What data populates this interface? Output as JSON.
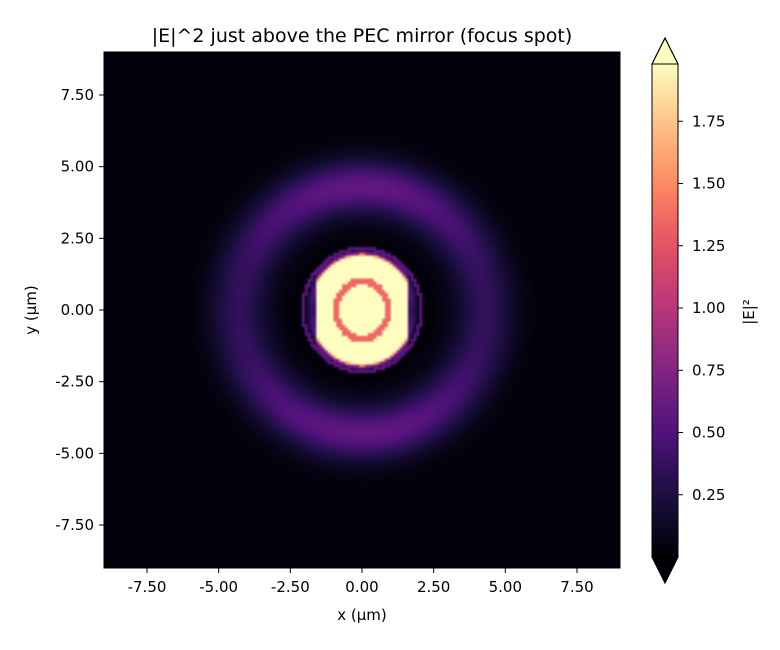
{
  "chart_data": {
    "type": "heatmap",
    "title": "|E|^2 just above the PEC mirror (focus spot)",
    "xlabel": "x (µm)",
    "ylabel": "y (µm)",
    "xlim": [
      -9.0,
      9.0
    ],
    "ylim": [
      -9.0,
      9.0
    ],
    "xticks": [
      -7.5,
      -5.0,
      -2.5,
      0.0,
      2.5,
      5.0,
      7.5
    ],
    "yticks": [
      -7.5,
      -5.0,
      -2.5,
      0.0,
      2.5,
      5.0,
      7.5
    ],
    "xtick_labels": [
      "-7.50",
      "-5.00",
      "-2.50",
      "0.00",
      "2.50",
      "5.00",
      "7.50"
    ],
    "ytick_labels": [
      "-7.50",
      "-5.00",
      "-2.50",
      "0.00",
      "2.50",
      "5.00",
      "7.50"
    ],
    "colormap": "magma",
    "colorbar": {
      "label": "|E|²",
      "vmin": 0.0,
      "vmax": 1.98,
      "ticks": [
        0.25,
        0.5,
        0.75,
        1.0,
        1.25,
        1.5,
        1.75
      ],
      "tick_labels": [
        "0.25",
        "0.50",
        "0.75",
        "1.00",
        "1.25",
        "1.50",
        "1.75"
      ],
      "extend": "both"
    },
    "features": {
      "central_core": {
        "x_half_width": 2.0,
        "y_half_height": 2.1,
        "peak": 1.98
      },
      "bright_rim_radius": 1.95,
      "inner_dip": {
        "x_half_width": 0.9,
        "y_half_height": 1.0,
        "value": 1.35
      },
      "outer_ring": {
        "center_radius": 4.3,
        "width": 1.2,
        "value": 0.45
      },
      "background": 0.02
    },
    "grid": false,
    "legend": "none"
  }
}
